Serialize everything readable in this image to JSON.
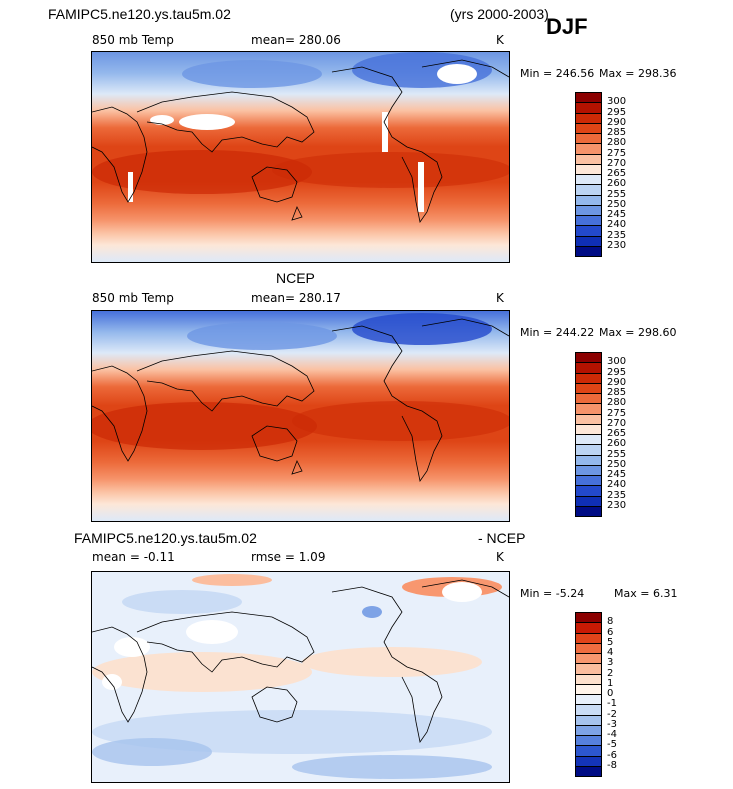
{
  "figure": {
    "title_left": "FAMIPC5.ne120.ys.tau5m.02",
    "years": "(yrs 2000-2003)",
    "season": "DJF"
  },
  "panels": [
    {
      "id": "model",
      "header": "",
      "variable": "850 mb Temp",
      "stat_label": "mean= 280.06",
      "units": "K",
      "min_label": "Min = 246.56",
      "max_label": "Max = 298.36",
      "min": 246.56,
      "max": 298.36,
      "colorbar": {
        "ticks": [
          "300",
          "295",
          "290",
          "285",
          "280",
          "275",
          "270",
          "265",
          "260",
          "255",
          "250",
          "245",
          "240",
          "235",
          "230"
        ],
        "colors": [
          "#8b0000",
          "#b31200",
          "#cc2a06",
          "#de4516",
          "#ec6a3a",
          "#f6936a",
          "#fbc1a2",
          "#fde7d8",
          "#dde9f8",
          "#bcd4f3",
          "#94b8ec",
          "#6d96e3",
          "#4670da",
          "#2349cc",
          "#0f2fb5",
          "#000c85"
        ]
      }
    },
    {
      "id": "ncep",
      "header": "NCEP",
      "variable": "850 mb Temp",
      "stat_label": "mean= 280.17",
      "units": "K",
      "min_label": "Min = 244.22",
      "max_label": "Max = 298.60",
      "min": 244.22,
      "max": 298.6,
      "colorbar": {
        "ticks": [
          "300",
          "295",
          "290",
          "285",
          "280",
          "275",
          "270",
          "265",
          "260",
          "255",
          "250",
          "245",
          "240",
          "235",
          "230"
        ],
        "colors": [
          "#8b0000",
          "#b31200",
          "#cc2a06",
          "#de4516",
          "#ec6a3a",
          "#f6936a",
          "#fbc1a2",
          "#fde7d8",
          "#dde9f8",
          "#bcd4f3",
          "#94b8ec",
          "#6d96e3",
          "#4670da",
          "#2349cc",
          "#0f2fb5",
          "#000c85"
        ]
      }
    },
    {
      "id": "diff",
      "header_left": "FAMIPC5.ne120.ys.tau5m.02",
      "header_right": "- NCEP",
      "variable": "mean =   -0.11",
      "stat_label": "rmse =    1.09",
      "units": "K",
      "min_label": "Min =  -5.24",
      "max_label": "Max =    6.31",
      "min": -5.24,
      "max": 6.31,
      "colorbar": {
        "ticks": [
          "8",
          "6",
          "5",
          "4",
          "3",
          "2",
          "1",
          "0",
          "-1",
          "-2",
          "-3",
          "-4",
          "-5",
          "-6",
          "-8"
        ],
        "colors": [
          "#8b0000",
          "#c81a04",
          "#e0441a",
          "#ef6d40",
          "#f8976f",
          "#fbbd9e",
          "#fde0cc",
          "#fff4ea",
          "#e8f0fb",
          "#cadcf5",
          "#a6c3ee",
          "#7ea3e6",
          "#5680dd",
          "#2d57cf",
          "#1434b8",
          "#000c85"
        ]
      }
    }
  ]
}
